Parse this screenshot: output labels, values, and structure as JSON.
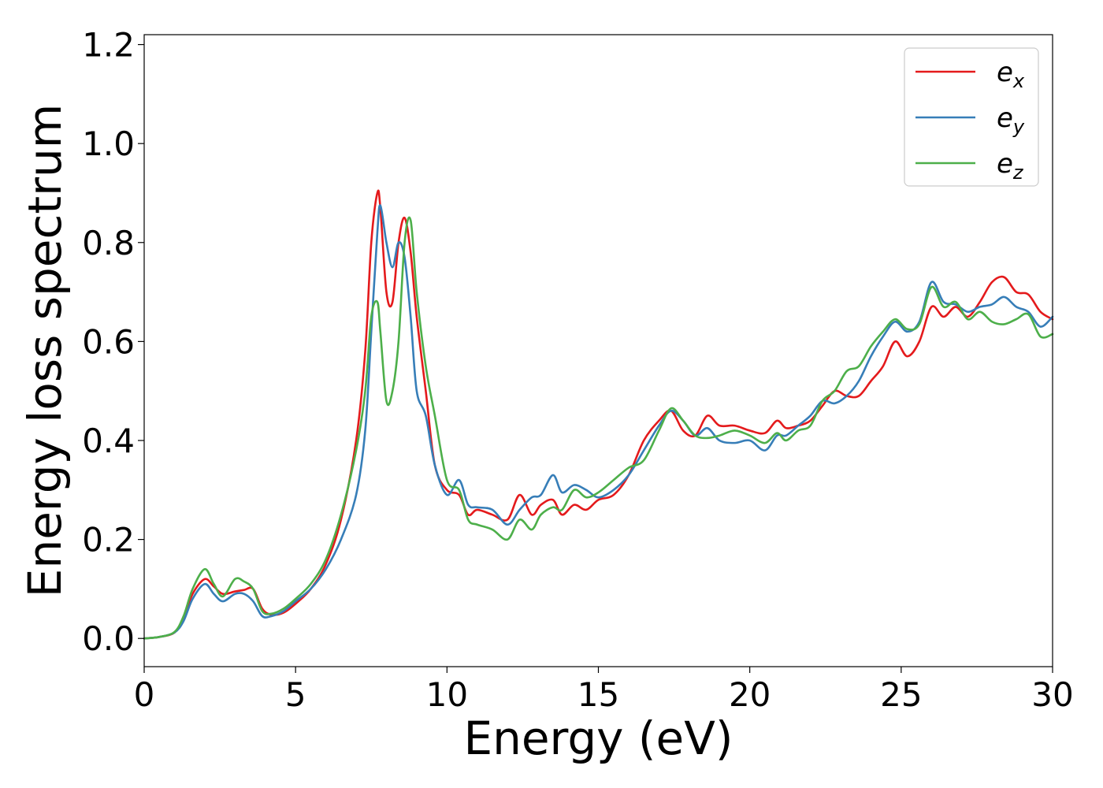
{
  "chart_data": {
    "type": "line",
    "title": "",
    "xlabel": "Energy (eV)",
    "ylabel": "Energy loss spectrum",
    "xlim": [
      0,
      30
    ],
    "ylim": [
      -0.057,
      1.22
    ],
    "xticks": [
      0,
      5,
      10,
      15,
      20,
      25,
      30
    ],
    "xtick_labels": [
      "0",
      "5",
      "10",
      "15",
      "20",
      "25",
      "30"
    ],
    "yticks": [
      0.0,
      0.2,
      0.4,
      0.6,
      0.8,
      1.0,
      1.2
    ],
    "ytick_labels": [
      "0.0",
      "0.2",
      "0.4",
      "0.6",
      "0.8",
      "1.0",
      "1.2"
    ],
    "grid": false,
    "legend_position": "top-right",
    "series": [
      {
        "name": "e_x",
        "name_base": "e",
        "name_sub": "x",
        "color": "#e41a1c",
        "x": [
          0,
          0.5,
          1,
          1.3,
          1.6,
          2.0,
          2.3,
          2.6,
          3.0,
          3.3,
          3.6,
          3.9,
          4.2,
          4.6,
          5.0,
          5.5,
          6.0,
          6.5,
          7.0,
          7.3,
          7.5,
          7.7,
          7.8,
          8.0,
          8.2,
          8.4,
          8.6,
          8.8,
          9.0,
          9.3,
          9.6,
          10.0,
          10.4,
          10.7,
          11.0,
          11.5,
          12.0,
          12.4,
          12.8,
          13.1,
          13.5,
          13.8,
          14.2,
          14.6,
          15.0,
          15.5,
          16.0,
          16.5,
          17.0,
          17.4,
          17.8,
          18.2,
          18.6,
          19.0,
          19.5,
          20.0,
          20.5,
          20.9,
          21.2,
          21.6,
          22.0,
          22.4,
          22.8,
          23.2,
          23.6,
          24.0,
          24.4,
          24.8,
          25.2,
          25.6,
          26.0,
          26.4,
          26.8,
          27.2,
          27.6,
          28.0,
          28.4,
          28.8,
          29.2,
          29.6,
          30.0
        ],
        "y": [
          0.0,
          0.003,
          0.012,
          0.04,
          0.09,
          0.12,
          0.105,
          0.09,
          0.095,
          0.098,
          0.1,
          0.06,
          0.048,
          0.052,
          0.07,
          0.1,
          0.15,
          0.24,
          0.4,
          0.58,
          0.8,
          0.9,
          0.87,
          0.7,
          0.68,
          0.8,
          0.85,
          0.78,
          0.65,
          0.5,
          0.35,
          0.3,
          0.29,
          0.25,
          0.26,
          0.25,
          0.24,
          0.29,
          0.25,
          0.27,
          0.28,
          0.25,
          0.27,
          0.26,
          0.28,
          0.29,
          0.33,
          0.4,
          0.44,
          0.46,
          0.42,
          0.41,
          0.45,
          0.43,
          0.43,
          0.42,
          0.415,
          0.44,
          0.425,
          0.43,
          0.44,
          0.47,
          0.5,
          0.49,
          0.49,
          0.52,
          0.55,
          0.6,
          0.57,
          0.6,
          0.67,
          0.65,
          0.67,
          0.65,
          0.68,
          0.72,
          0.73,
          0.7,
          0.695,
          0.66,
          0.645
        ]
      },
      {
        "name": "e_y",
        "name_base": "e",
        "name_sub": "y",
        "color": "#377eb8",
        "x": [
          0,
          0.5,
          1,
          1.3,
          1.6,
          2.0,
          2.3,
          2.6,
          3.0,
          3.3,
          3.6,
          3.9,
          4.2,
          4.6,
          5.0,
          5.5,
          6.0,
          6.5,
          7.0,
          7.3,
          7.5,
          7.7,
          7.8,
          8.0,
          8.2,
          8.4,
          8.6,
          8.8,
          9.0,
          9.3,
          9.6,
          10.0,
          10.4,
          10.7,
          11.0,
          11.5,
          12.0,
          12.4,
          12.8,
          13.1,
          13.5,
          13.8,
          14.2,
          14.6,
          15.0,
          15.5,
          16.0,
          16.5,
          17.0,
          17.4,
          17.8,
          18.2,
          18.6,
          19.0,
          19.5,
          20.0,
          20.5,
          20.9,
          21.2,
          21.6,
          22.0,
          22.4,
          22.8,
          23.2,
          23.6,
          24.0,
          24.4,
          24.8,
          25.2,
          25.6,
          26.0,
          26.4,
          26.8,
          27.2,
          27.6,
          28.0,
          28.4,
          28.8,
          29.2,
          29.6,
          30.0
        ],
        "y": [
          0.0,
          0.003,
          0.012,
          0.035,
          0.08,
          0.11,
          0.09,
          0.075,
          0.09,
          0.09,
          0.075,
          0.045,
          0.045,
          0.055,
          0.075,
          0.1,
          0.14,
          0.2,
          0.29,
          0.42,
          0.62,
          0.82,
          0.875,
          0.8,
          0.75,
          0.8,
          0.77,
          0.65,
          0.5,
          0.45,
          0.35,
          0.29,
          0.32,
          0.27,
          0.265,
          0.26,
          0.23,
          0.26,
          0.285,
          0.29,
          0.33,
          0.295,
          0.31,
          0.3,
          0.285,
          0.3,
          0.33,
          0.38,
          0.43,
          0.46,
          0.44,
          0.41,
          0.425,
          0.4,
          0.395,
          0.4,
          0.38,
          0.41,
          0.41,
          0.43,
          0.45,
          0.48,
          0.475,
          0.49,
          0.52,
          0.57,
          0.61,
          0.64,
          0.62,
          0.64,
          0.72,
          0.68,
          0.675,
          0.66,
          0.67,
          0.675,
          0.69,
          0.67,
          0.66,
          0.63,
          0.65
        ]
      },
      {
        "name": "e_z",
        "name_base": "e",
        "name_sub": "z",
        "color": "#4daf4a",
        "x": [
          0,
          0.5,
          1,
          1.3,
          1.6,
          2.0,
          2.3,
          2.6,
          3.0,
          3.3,
          3.6,
          3.9,
          4.2,
          4.6,
          5.0,
          5.5,
          6.0,
          6.5,
          7.0,
          7.3,
          7.5,
          7.7,
          7.8,
          8.0,
          8.2,
          8.4,
          8.6,
          8.8,
          9.0,
          9.3,
          9.6,
          10.0,
          10.4,
          10.7,
          11.0,
          11.5,
          12.0,
          12.4,
          12.8,
          13.1,
          13.5,
          13.8,
          14.2,
          14.6,
          15.0,
          15.5,
          16.0,
          16.5,
          17.0,
          17.4,
          17.8,
          18.2,
          18.6,
          19.0,
          19.5,
          20.0,
          20.5,
          20.9,
          21.2,
          21.6,
          22.0,
          22.4,
          22.8,
          23.2,
          23.6,
          24.0,
          24.4,
          24.8,
          25.2,
          25.6,
          26.0,
          26.4,
          26.8,
          27.2,
          27.6,
          28.0,
          28.4,
          28.8,
          29.2,
          29.6,
          30.0
        ],
        "y": [
          0.0,
          0.003,
          0.013,
          0.045,
          0.1,
          0.14,
          0.11,
          0.085,
          0.12,
          0.115,
          0.1,
          0.055,
          0.05,
          0.06,
          0.08,
          0.11,
          0.16,
          0.25,
          0.38,
          0.5,
          0.65,
          0.68,
          0.62,
          0.48,
          0.5,
          0.6,
          0.8,
          0.845,
          0.7,
          0.55,
          0.45,
          0.32,
          0.3,
          0.24,
          0.23,
          0.22,
          0.2,
          0.24,
          0.22,
          0.25,
          0.265,
          0.26,
          0.3,
          0.285,
          0.295,
          0.32,
          0.345,
          0.36,
          0.42,
          0.465,
          0.44,
          0.41,
          0.405,
          0.41,
          0.42,
          0.41,
          0.395,
          0.415,
          0.4,
          0.42,
          0.43,
          0.48,
          0.5,
          0.54,
          0.55,
          0.59,
          0.62,
          0.645,
          0.625,
          0.635,
          0.71,
          0.67,
          0.68,
          0.645,
          0.66,
          0.64,
          0.635,
          0.645,
          0.655,
          0.61,
          0.615
        ]
      }
    ]
  }
}
